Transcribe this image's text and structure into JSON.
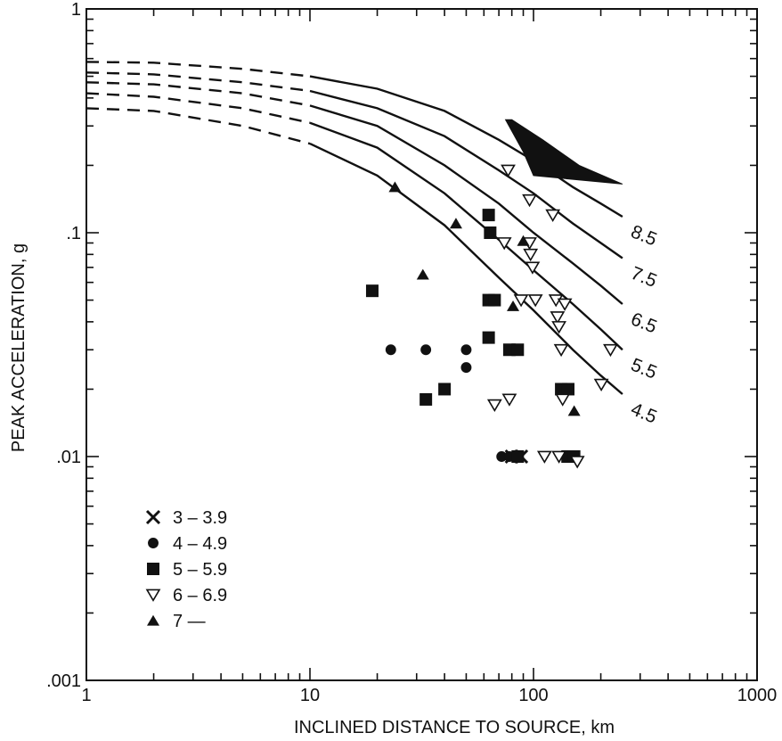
{
  "chart_data": {
    "type": "scatter",
    "title": "",
    "xlabel": "INCLINED DISTANCE TO SOURCE, km",
    "ylabel": "PEAK ACCELERATION, g",
    "xscale": "log",
    "yscale": "log",
    "xlim": [
      1,
      1000
    ],
    "ylim": [
      0.001,
      1
    ],
    "x_tick_labels": [
      "1",
      "10",
      "100",
      "1000"
    ],
    "y_tick_labels": [
      ".001",
      ".01",
      ".1",
      "1"
    ],
    "grid": false,
    "legend_position": "bottom-left",
    "colors": {
      "ink": "#111111",
      "background": "#ffffff"
    },
    "curves": [
      {
        "label": "8.5",
        "points": [
          [
            1,
            0.58
          ],
          [
            2,
            0.575
          ],
          [
            5,
            0.54
          ],
          [
            10,
            0.5
          ],
          [
            20,
            0.44
          ],
          [
            40,
            0.35
          ],
          [
            70,
            0.26
          ],
          [
            100,
            0.21
          ],
          [
            150,
            0.16
          ],
          [
            200,
            0.135
          ],
          [
            250,
            0.118
          ]
        ]
      },
      {
        "label": "7.5",
        "points": [
          [
            1,
            0.52
          ],
          [
            2,
            0.51
          ],
          [
            5,
            0.47
          ],
          [
            10,
            0.43
          ],
          [
            20,
            0.36
          ],
          [
            40,
            0.27
          ],
          [
            70,
            0.19
          ],
          [
            100,
            0.15
          ],
          [
            150,
            0.11
          ],
          [
            200,
            0.09
          ],
          [
            250,
            0.077
          ]
        ]
      },
      {
        "label": "6.5",
        "points": [
          [
            1,
            0.47
          ],
          [
            2,
            0.46
          ],
          [
            5,
            0.42
          ],
          [
            10,
            0.37
          ],
          [
            20,
            0.3
          ],
          [
            40,
            0.2
          ],
          [
            70,
            0.135
          ],
          [
            100,
            0.1
          ],
          [
            150,
            0.073
          ],
          [
            200,
            0.058
          ],
          [
            250,
            0.048
          ]
        ]
      },
      {
        "label": "5.5",
        "points": [
          [
            1,
            0.42
          ],
          [
            2,
            0.405
          ],
          [
            5,
            0.36
          ],
          [
            10,
            0.31
          ],
          [
            20,
            0.24
          ],
          [
            40,
            0.15
          ],
          [
            70,
            0.093
          ],
          [
            100,
            0.068
          ],
          [
            150,
            0.048
          ],
          [
            200,
            0.037
          ],
          [
            250,
            0.03
          ]
        ]
      },
      {
        "label": "4.5",
        "points": [
          [
            1,
            0.36
          ],
          [
            2,
            0.35
          ],
          [
            5,
            0.3
          ],
          [
            10,
            0.25
          ],
          [
            20,
            0.18
          ],
          [
            40,
            0.108
          ],
          [
            70,
            0.063
          ],
          [
            100,
            0.045
          ],
          [
            150,
            0.03
          ],
          [
            200,
            0.023
          ],
          [
            250,
            0.019
          ]
        ]
      }
    ],
    "shaded_region": {
      "points": [
        [
          75,
          0.32
        ],
        [
          90,
          0.23
        ],
        [
          100,
          0.18
        ],
        [
          250,
          0.165
        ],
        [
          160,
          0.2
        ],
        [
          110,
          0.26
        ],
        [
          80,
          0.32
        ]
      ]
    },
    "series": [
      {
        "name": "3 – 3.9",
        "marker": "x",
        "points": [
          [
            80,
            0.01
          ],
          [
            88,
            0.01
          ]
        ]
      },
      {
        "name": "4 – 4.9",
        "marker": "circle",
        "points": [
          [
            23,
            0.03
          ],
          [
            33,
            0.03
          ],
          [
            50,
            0.03
          ],
          [
            50,
            0.025
          ],
          [
            72,
            0.01
          ],
          [
            78,
            0.01
          ]
        ]
      },
      {
        "name": "5 – 5.9",
        "marker": "square",
        "points": [
          [
            19,
            0.055
          ],
          [
            33,
            0.018
          ],
          [
            40,
            0.02
          ],
          [
            63,
            0.12
          ],
          [
            64,
            0.1
          ],
          [
            63,
            0.05
          ],
          [
            67,
            0.05
          ],
          [
            63,
            0.034
          ],
          [
            78,
            0.03
          ],
          [
            85,
            0.03
          ],
          [
            133,
            0.02
          ],
          [
            143,
            0.02
          ],
          [
            85,
            0.01
          ],
          [
            142,
            0.01
          ],
          [
            152,
            0.01
          ]
        ]
      },
      {
        "name": "6 – 6.9",
        "marker": "triangle-down",
        "points": [
          [
            77,
            0.19
          ],
          [
            96,
            0.14
          ],
          [
            122,
            0.12
          ],
          [
            74,
            0.09
          ],
          [
            96,
            0.09
          ],
          [
            97,
            0.08
          ],
          [
            99,
            0.07
          ],
          [
            88,
            0.05
          ],
          [
            102,
            0.05
          ],
          [
            126,
            0.05
          ],
          [
            138,
            0.048
          ],
          [
            128,
            0.042
          ],
          [
            130,
            0.038
          ],
          [
            133,
            0.03
          ],
          [
            221,
            0.03
          ],
          [
            135,
            0.018
          ],
          [
            201,
            0.021
          ],
          [
            67,
            0.017
          ],
          [
            78,
            0.018
          ],
          [
            112,
            0.01
          ],
          [
            130,
            0.01
          ],
          [
            157,
            0.0095
          ]
        ]
      },
      {
        "name": "7 —",
        "marker": "triangle-up",
        "points": [
          [
            24,
            0.16
          ],
          [
            45,
            0.11
          ],
          [
            32,
            0.065
          ],
          [
            90,
            0.092
          ],
          [
            81,
            0.047
          ],
          [
            152,
            0.016
          ]
        ]
      }
    ]
  }
}
